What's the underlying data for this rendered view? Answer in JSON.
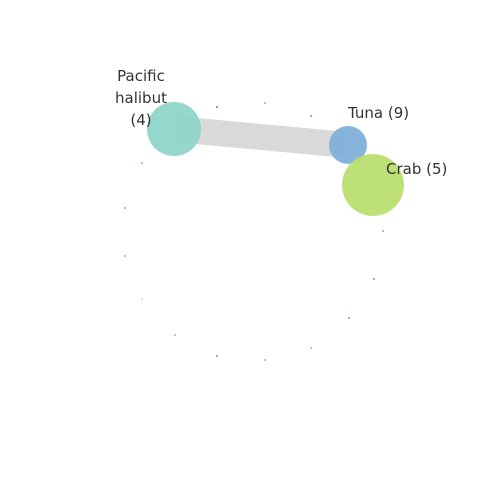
{
  "diagram": {
    "type": "circular-network",
    "nodes": [
      {
        "id": "pacific-halibut",
        "label_lines": [
          "Pacific",
          "halibut",
          "(4)"
        ],
        "color": "#8fd5c8",
        "value": 4
      },
      {
        "id": "tuna",
        "label_lines": [
          "Tuna (9)"
        ],
        "color": "#7fb0d8",
        "value": 9
      },
      {
        "id": "crab",
        "label_lines": [
          "Crab (5)"
        ],
        "color": "#b9df70",
        "value": 5
      }
    ],
    "edges": [
      {
        "source": "pacific-halibut",
        "target": "tuna",
        "color": "#d9d9d9"
      }
    ],
    "minor_node_colors": [
      "#7a7a7a",
      "#c9a0a0",
      "#e07070",
      "#f0a070",
      "#a0a0a0",
      "#b0b0d0",
      "#d0d0d0",
      "#b0b0b0",
      "#909090",
      "#c0a0c0",
      "#a0c0a0",
      "#d08080",
      "#b08080",
      "#a0a0c0"
    ]
  }
}
